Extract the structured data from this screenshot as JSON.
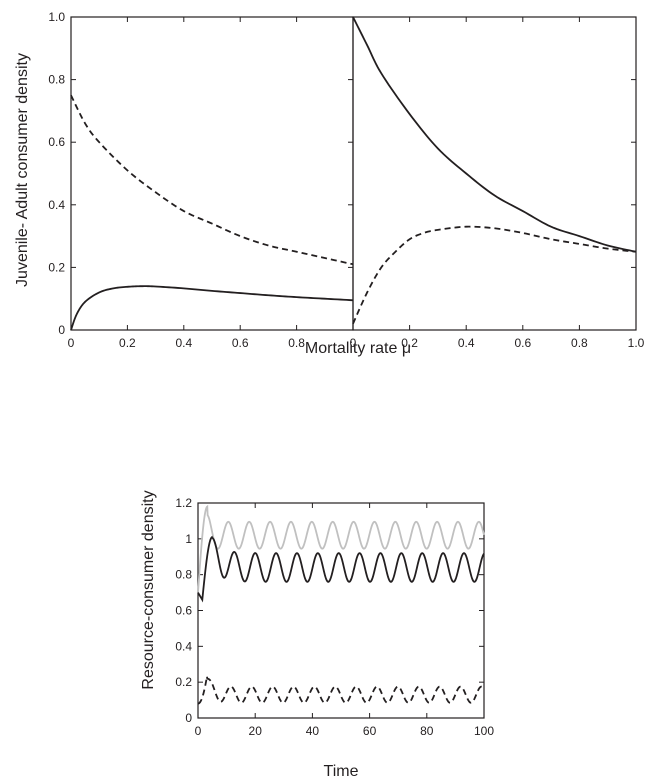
{
  "chart_data": [
    {
      "type": "line",
      "panel": "top-left",
      "xlim": [
        0,
        1
      ],
      "ylim": [
        0,
        1
      ],
      "x_ticks": [
        "0",
        "0.2",
        "0.4",
        "0.6",
        "0.8"
      ],
      "y_ticks": [
        "0",
        "0.2",
        "0.4",
        "0.6",
        "0.8",
        "1.0"
      ],
      "ylabel": "Juvenile- Adult consumer density",
      "series": [
        {
          "style": "dashed",
          "color": "#231f20",
          "x": [
            0,
            0.05,
            0.1,
            0.2,
            0.3,
            0.4,
            0.5,
            0.6,
            0.7,
            0.8,
            0.9,
            1.0
          ],
          "y": [
            0.75,
            0.66,
            0.6,
            0.51,
            0.44,
            0.38,
            0.34,
            0.3,
            0.27,
            0.25,
            0.23,
            0.21
          ]
        },
        {
          "style": "solid",
          "color": "#231f20",
          "x": [
            0,
            0.02,
            0.05,
            0.1,
            0.15,
            0.2,
            0.25,
            0.3,
            0.4,
            0.5,
            0.6,
            0.7,
            0.8,
            0.9,
            1.0
          ],
          "y": [
            0,
            0.05,
            0.09,
            0.12,
            0.133,
            0.138,
            0.14,
            0.139,
            0.133,
            0.125,
            0.118,
            0.111,
            0.105,
            0.1,
            0.095
          ]
        }
      ]
    },
    {
      "type": "line",
      "panel": "top-right",
      "xlim": [
        0,
        1
      ],
      "ylim": [
        0,
        1
      ],
      "x_ticks": [
        "0",
        "0.2",
        "0.4",
        "0.6",
        "0.8",
        "1.0"
      ],
      "xlabel": "Mortality rate μ",
      "series": [
        {
          "style": "solid",
          "color": "#231f20",
          "x": [
            0,
            0.05,
            0.1,
            0.2,
            0.3,
            0.4,
            0.5,
            0.6,
            0.7,
            0.8,
            0.9,
            1.0
          ],
          "y": [
            1.0,
            0.91,
            0.82,
            0.69,
            0.58,
            0.5,
            0.43,
            0.38,
            0.33,
            0.3,
            0.27,
            0.25
          ]
        },
        {
          "style": "dashed",
          "color": "#231f20",
          "x": [
            0,
            0.05,
            0.1,
            0.15,
            0.2,
            0.25,
            0.3,
            0.4,
            0.5,
            0.6,
            0.7,
            0.8,
            0.9,
            1.0
          ],
          "y": [
            0.02,
            0.12,
            0.2,
            0.25,
            0.29,
            0.31,
            0.32,
            0.33,
            0.325,
            0.31,
            0.29,
            0.275,
            0.26,
            0.25
          ]
        }
      ]
    },
    {
      "type": "line",
      "panel": "bottom",
      "xlim": [
        0,
        100
      ],
      "ylim": [
        0,
        1.2
      ],
      "x_ticks": [
        "0",
        "20",
        "40",
        "60",
        "80",
        "100"
      ],
      "y_ticks": [
        "0",
        "0.2",
        "0.4",
        "0.6",
        "0.8",
        "1",
        "1.2"
      ],
      "xlabel": "Time",
      "ylabel": "Resource-consumer density",
      "period": 7.3,
      "series": [
        {
          "style": "solid",
          "color": "#c0c0c0",
          "start": 0.7,
          "peak": 1.18,
          "mean": 1.02,
          "amplitude": 0.075
        },
        {
          "style": "solid",
          "color": "#231f20",
          "start": 0.7,
          "dip": 0.66,
          "peak": 1.01,
          "mean": 0.84,
          "amplitude": 0.08
        },
        {
          "style": "dashed",
          "color": "#231f20",
          "start": 0.08,
          "peak": 0.24,
          "mean": 0.13,
          "amplitude": 0.045
        }
      ]
    }
  ]
}
